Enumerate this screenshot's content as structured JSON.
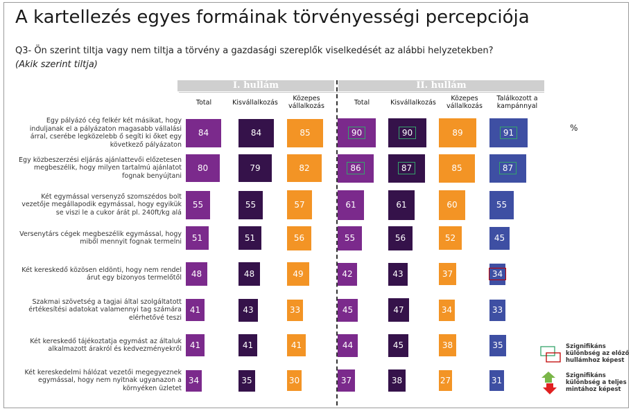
{
  "title": "A kartellezés egyes formáinak törvényességi percepciója",
  "question": "Q3- Ön szerint tiltja vagy nem tiltja a törvény a gazdasági szereplők viselkedését az alábbi helyzetekben?",
  "subquestion": "(Akik szerint tiltja)",
  "unit": "%",
  "chart_data": {
    "type": "bar",
    "waves": [
      "I. hullám",
      "II. hullám"
    ],
    "series": [
      {
        "name": "Total",
        "wave": "I. hullám",
        "color": "#7b2a8c",
        "values": [
          84,
          80,
          55,
          51,
          48,
          41,
          41,
          34
        ],
        "marks": [
          "",
          "",
          "",
          "",
          "",
          "",
          "",
          ""
        ]
      },
      {
        "name": "Kisvállalkozás",
        "wave": "I. hullám",
        "color": "#35124a",
        "values": [
          84,
          79,
          55,
          51,
          48,
          43,
          41,
          35
        ],
        "marks": [
          "",
          "",
          "",
          "",
          "",
          "",
          "",
          ""
        ]
      },
      {
        "name": "Közepes vállalkozás",
        "wave": "I. hullám",
        "color": "#f39425",
        "values": [
          85,
          82,
          57,
          56,
          49,
          33,
          41,
          30
        ],
        "marks": [
          "",
          "",
          "",
          "",
          "",
          "",
          "",
          ""
        ]
      },
      {
        "name": "Total",
        "wave": "II. hullám",
        "color": "#7b2a8c",
        "values": [
          90,
          86,
          61,
          55,
          42,
          45,
          44,
          37
        ],
        "marks": [
          "up",
          "up",
          "",
          "",
          "",
          "",
          "",
          ""
        ]
      },
      {
        "name": "Kisvállalkozás",
        "wave": "II. hullám",
        "color": "#35124a",
        "values": [
          90,
          87,
          61,
          56,
          43,
          47,
          45,
          38
        ],
        "marks": [
          "up",
          "up",
          "",
          "",
          "",
          "",
          "",
          ""
        ]
      },
      {
        "name": "Közepes vállalkozás",
        "wave": "II. hullám",
        "color": "#f39425",
        "values": [
          89,
          85,
          60,
          52,
          37,
          34,
          38,
          27
        ],
        "marks": [
          "",
          "",
          "",
          "",
          "",
          "",
          "",
          ""
        ]
      },
      {
        "name": "Találkozott a kampánnyal",
        "wave": "II. hullám",
        "color": "#3e4fa3",
        "values": [
          91,
          87,
          55,
          45,
          34,
          33,
          35,
          31
        ],
        "marks": [
          "up",
          "up",
          "",
          "",
          "down",
          "",
          "",
          ""
        ]
      }
    ],
    "categories": [
      "Egy pályázó cég felkér két másikat, hogy induljanak el a pályázaton magasabb vállalási árral, cserébe legközelebb ő segíti ki őket egy következő pályázaton",
      "Egy közbeszerzési eljárás ajánlattevői előzetesen megbeszélik, hogy milyen tartalmú ajánlatot fognak benyújtani",
      "Két egymással versenyző szomszédos bolt vezetője megállapodik egymással, hogy egyikük se viszi le a cukor árát pl. 240ft/kg alá",
      "Versenytárs cégek megbeszélik egymással, hogy miből mennyit fognak termelni",
      "Két kereskedő közösen eldönti, hogy nem rendel árut egy bizonyos termelőtől",
      "Szakmai szövetség a tagjai által szolgáltatott értékesítési adatokat valamennyi tag számára elérhetővé teszi",
      "Két kereskedő tájékoztatja egymást az általuk alkalmazott árakról és kedvezményekről",
      "Két kereskedelmi hálózat vezetői megegyeznek egymással, hogy nem nyitnak ugyanazon a környéken üzletet"
    ]
  },
  "legend": {
    "box_text": "Szignifikáns különbség az előző hullámhoz képest",
    "arrow_text": "Szignifikáns különbség a teljes mintához képest"
  },
  "colors": {
    "up_mark": "#35a46b",
    "down_mark": "#c00000",
    "arrow_up": "#7ab648",
    "arrow_down": "#e02020"
  }
}
